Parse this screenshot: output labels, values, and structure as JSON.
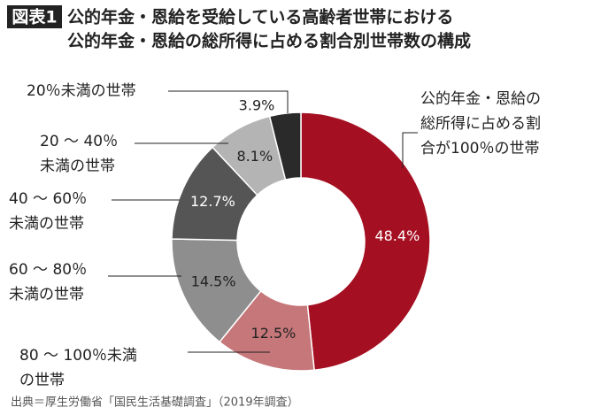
{
  "badge": "図表1",
  "title_lines": [
    "公的年金・恩給を受給している高齢者世帯における",
    "公的年金・恩給の総所得に占める割合別世帯数の構成"
  ],
  "source": "出典＝厚生労働省「国民生活基礎調査」（2019年調査）",
  "chart_data": {
    "type": "donut",
    "categories": [
      [
        "公的年金・恩給の",
        "総所得に占める割",
        "合が100％の世帯"
      ],
      [
        "80 ～ 100％未満",
        "の世帯"
      ],
      [
        "60 ～ 80％",
        "未満の世帯"
      ],
      [
        "40 ～ 60％",
        "未満の世帯"
      ],
      [
        "20 ～ 40％",
        "未満の世帯"
      ],
      [
        "20％未満の世帯"
      ]
    ],
    "values": [
      48.4,
      12.5,
      14.5,
      12.7,
      8.1,
      3.9
    ],
    "value_labels": [
      "48.4%",
      "12.5%",
      "14.5%",
      "12.7%",
      "8.1%",
      "3.9%"
    ],
    "colors": [
      "#a50f22",
      "#c6777a",
      "#8e8e8e",
      "#555555",
      "#b4b4b4",
      "#2a2a2a"
    ]
  }
}
